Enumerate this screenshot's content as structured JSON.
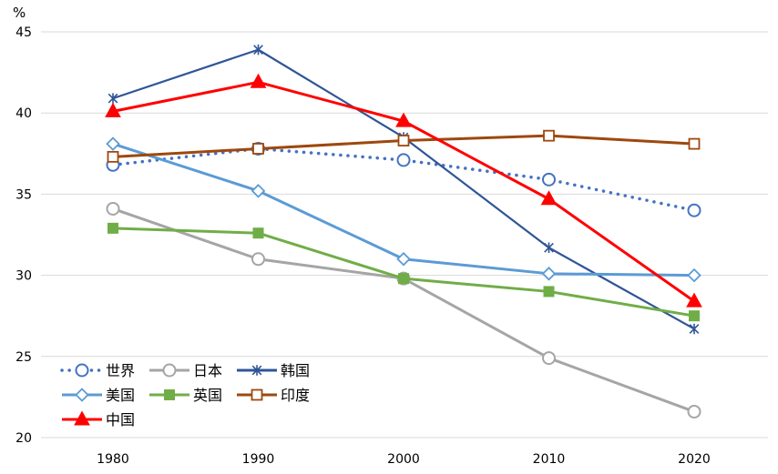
{
  "chart_data": {
    "type": "line",
    "unit": "%",
    "x": [
      1980,
      1990,
      2000,
      2010,
      2020
    ],
    "ylim": [
      20,
      45
    ],
    "yticks": [
      20,
      25,
      30,
      35,
      40,
      45
    ],
    "grid": "horizontal",
    "legend_position": "bottom-left",
    "series": [
      {
        "name": "世界",
        "values": [
          36.8,
          37.8,
          37.1,
          35.9,
          34.0
        ],
        "color": "#4472C4",
        "marker": "circle",
        "dash": "dotted"
      },
      {
        "name": "日本",
        "values": [
          34.1,
          31.0,
          29.8,
          24.9,
          21.6
        ],
        "color": "#A5A5A5",
        "marker": "circle",
        "dash": "solid"
      },
      {
        "name": "韩国",
        "values": [
          40.9,
          43.9,
          38.5,
          31.7,
          26.7
        ],
        "color": "#2F5597",
        "marker": "star",
        "dash": "solid"
      },
      {
        "name": "美国",
        "values": [
          38.1,
          35.2,
          31.0,
          30.1,
          30.0
        ],
        "color": "#5B9BD5",
        "marker": "diamond",
        "dash": "solid"
      },
      {
        "name": "英国",
        "values": [
          32.9,
          32.6,
          29.8,
          29.0,
          27.5
        ],
        "color": "#70AD47",
        "marker": "square-filled",
        "dash": "solid"
      },
      {
        "name": "印度",
        "values": [
          37.3,
          37.8,
          38.3,
          38.6,
          38.1
        ],
        "color": "#9E480E",
        "marker": "square-open",
        "dash": "solid"
      },
      {
        "name": "中国",
        "values": [
          40.1,
          41.9,
          39.5,
          34.7,
          28.4
        ],
        "color": "#FF0000",
        "marker": "triangle",
        "dash": "solid"
      }
    ]
  }
}
